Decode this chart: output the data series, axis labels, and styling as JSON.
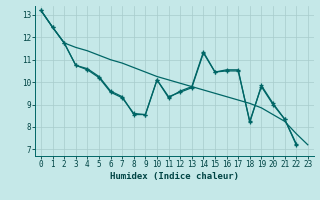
{
  "xlabel": "Humidex (Indice chaleur)",
  "bg_color": "#c5e8e8",
  "grid_color": "#a8cccc",
  "line_color": "#006666",
  "xlim": [
    -0.5,
    23.5
  ],
  "ylim": [
    6.7,
    13.4
  ],
  "xticks": [
    0,
    1,
    2,
    3,
    4,
    5,
    6,
    7,
    8,
    9,
    10,
    11,
    12,
    13,
    14,
    15,
    16,
    17,
    18,
    19,
    20,
    21,
    22,
    23
  ],
  "yticks": [
    7,
    8,
    9,
    10,
    11,
    12,
    13
  ],
  "line_smooth": [
    13.2,
    12.45,
    11.75,
    11.55,
    11.4,
    11.2,
    11.0,
    10.85,
    10.65,
    10.45,
    10.25,
    10.1,
    9.95,
    9.8,
    9.65,
    9.5,
    9.35,
    9.2,
    9.05,
    8.85,
    8.55,
    8.25,
    7.7,
    7.2
  ],
  "line_jagged1": [
    13.2,
    12.45,
    11.75,
    10.75,
    10.55,
    10.2,
    9.55,
    9.3,
    8.6,
    8.55,
    10.1,
    9.35,
    9.55,
    9.75,
    11.3,
    10.45,
    10.5,
    10.5,
    8.25,
    9.8,
    9.0,
    8.35,
    7.2,
    null
  ],
  "line_jagged2": [
    13.2,
    12.45,
    11.75,
    10.75,
    10.6,
    10.25,
    9.6,
    9.35,
    8.55,
    8.55,
    10.1,
    9.3,
    9.6,
    9.8,
    11.35,
    10.45,
    10.55,
    10.55,
    8.2,
    9.85,
    9.05,
    8.35,
    7.25,
    null
  ]
}
